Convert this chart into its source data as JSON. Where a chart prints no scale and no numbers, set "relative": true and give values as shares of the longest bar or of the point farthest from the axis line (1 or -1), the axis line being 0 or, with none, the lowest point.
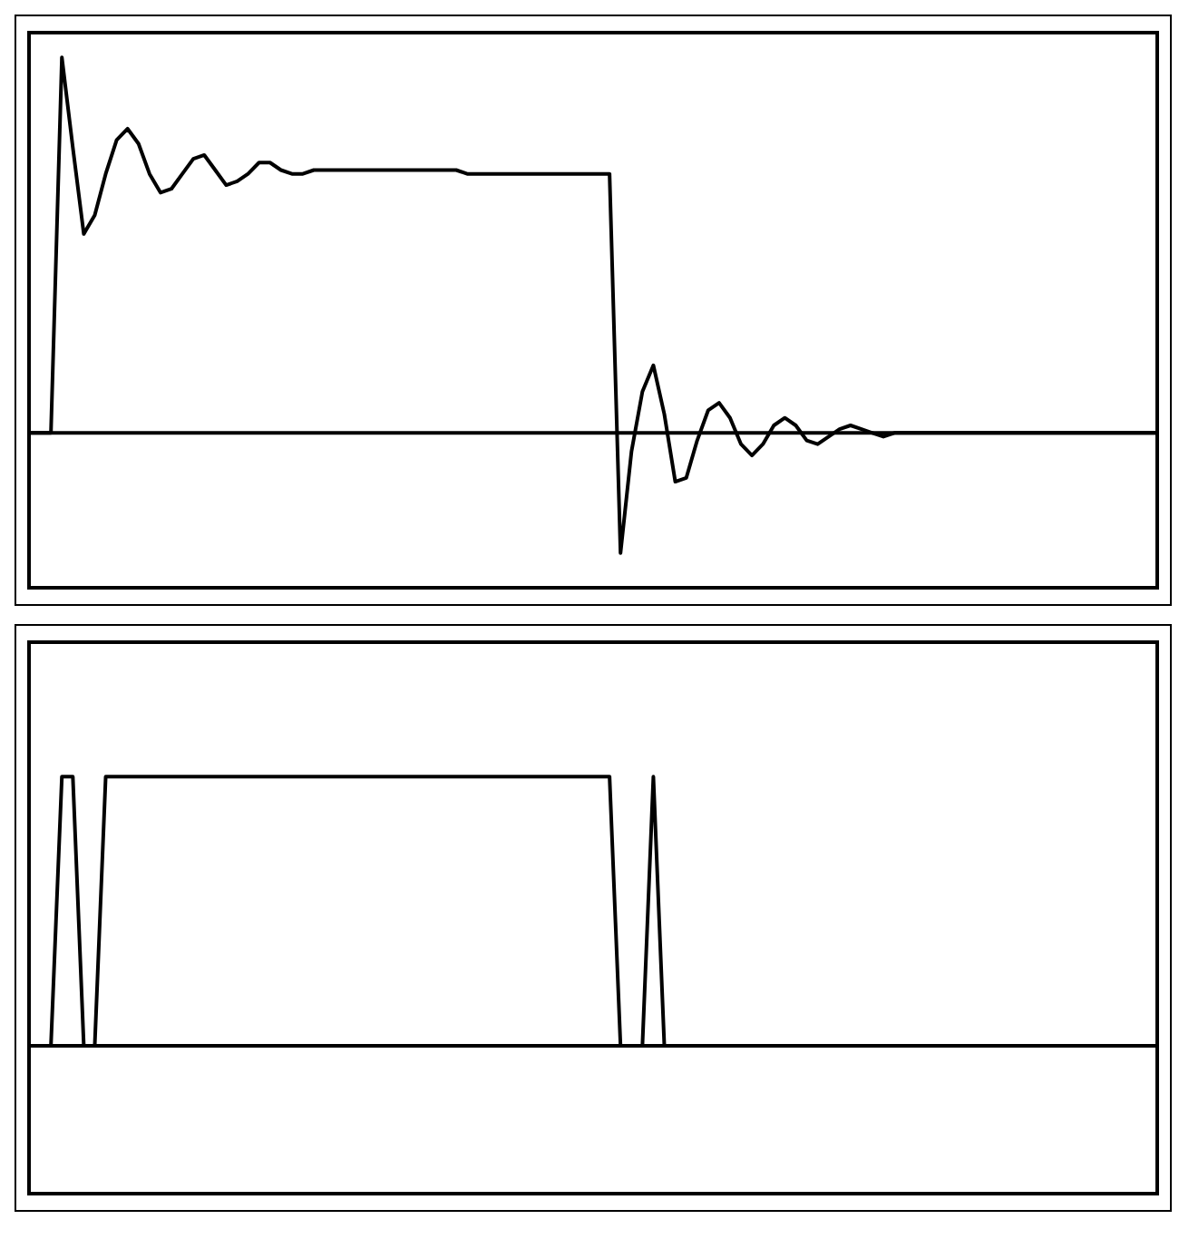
{
  "chart_data": [
    {
      "type": "line",
      "relative": true,
      "categories": [
        null,
        null,
        null,
        null,
        null,
        null,
        null,
        null,
        null,
        null,
        null,
        null,
        null,
        null,
        null,
        null,
        null,
        null,
        null,
        null,
        null,
        null,
        null,
        null,
        null,
        null,
        null,
        null,
        null,
        null,
        null,
        null,
        null,
        null,
        null,
        null,
        null,
        null,
        null,
        null,
        null,
        null,
        null,
        null,
        null,
        null,
        null,
        null,
        null,
        null,
        null,
        null,
        null,
        null,
        null,
        null,
        null,
        null,
        null,
        null,
        null,
        null,
        null,
        null,
        null,
        null,
        null,
        null,
        null,
        null,
        null,
        null,
        null,
        null,
        null,
        null,
        null,
        null,
        null,
        null,
        null,
        null,
        null,
        null,
        null,
        null,
        null,
        null,
        null,
        null,
        null,
        null,
        null,
        null,
        null,
        null,
        null,
        null,
        null,
        null,
        null,
        null,
        null,
        null
      ],
      "series": [
        {
          "color": "#000000",
          "values": [
            0,
            0,
            0,
            1,
            0.76,
            0.53,
            0.58,
            0.69,
            0.78,
            0.81,
            0.77,
            0.69,
            0.64,
            0.65,
            0.69,
            0.73,
            0.74,
            0.7,
            0.66,
            0.67,
            0.69,
            0.72,
            0.72,
            0.7,
            0.69,
            0.69,
            0.7,
            0.7,
            0.7,
            0.7,
            0.7,
            0.7,
            0.7,
            0.7,
            0.7,
            0.7,
            0.7,
            0.7,
            0.7,
            0.7,
            0.69,
            0.69,
            0.69,
            0.69,
            0.69,
            0.69,
            0.69,
            0.69,
            0.69,
            0.69,
            0.69,
            0.69,
            0.69,
            0.69,
            -0.32,
            -0.05,
            0.11,
            0.18,
            0.05,
            -0.13,
            -0.12,
            -0.02,
            0.06,
            0.08,
            0.04,
            -0.03,
            -0.06,
            -0.03,
            0.02,
            0.04,
            0.02,
            -0.02,
            -0.03,
            -0.01,
            0.01,
            0.02,
            0.01,
            0,
            -0.01,
            0,
            0,
            0,
            0,
            0,
            0,
            0,
            0,
            0,
            0,
            0,
            0,
            0,
            0,
            0,
            0,
            0,
            0,
            0,
            0,
            0,
            0,
            0,
            0,
            0
          ]
        }
      ]
    },
    {
      "type": "line",
      "relative": true,
      "categories": [
        null,
        null,
        null,
        null,
        null,
        null,
        null,
        null,
        null,
        null,
        null,
        null,
        null,
        null,
        null,
        null,
        null,
        null,
        null,
        null,
        null,
        null,
        null,
        null,
        null,
        null,
        null,
        null,
        null,
        null,
        null,
        null,
        null,
        null,
        null,
        null,
        null,
        null,
        null,
        null,
        null,
        null,
        null,
        null,
        null,
        null,
        null,
        null,
        null,
        null,
        null,
        null,
        null,
        null,
        null,
        null,
        null,
        null,
        null,
        null,
        null,
        null,
        null,
        null,
        null,
        null,
        null,
        null,
        null,
        null,
        null,
        null,
        null,
        null,
        null,
        null,
        null,
        null,
        null,
        null,
        null,
        null,
        null,
        null,
        null,
        null,
        null,
        null,
        null,
        null,
        null,
        null,
        null,
        null,
        null,
        null,
        null,
        null,
        null,
        null,
        null,
        null,
        null,
        null
      ],
      "series": [
        {
          "color": "#000000",
          "values": [
            0,
            0,
            0,
            1,
            1,
            0,
            0,
            1,
            1,
            1,
            1,
            1,
            1,
            1,
            1,
            1,
            1,
            1,
            1,
            1,
            1,
            1,
            1,
            1,
            1,
            1,
            1,
            1,
            1,
            1,
            1,
            1,
            1,
            1,
            1,
            1,
            1,
            1,
            1,
            1,
            1,
            1,
            1,
            1,
            1,
            1,
            1,
            1,
            1,
            1,
            1,
            1,
            1,
            1,
            0,
            0,
            0,
            1,
            0,
            0,
            0,
            0,
            0,
            0,
            0,
            0,
            0,
            0,
            0,
            0,
            0,
            0,
            0,
            0,
            0,
            0,
            0,
            0,
            0,
            0,
            0,
            0,
            0,
            0,
            0,
            0,
            0,
            0,
            0,
            0,
            0,
            0,
            0,
            0,
            0,
            0,
            0,
            0,
            0,
            0,
            0,
            0,
            0,
            0
          ]
        }
      ]
    }
  ]
}
